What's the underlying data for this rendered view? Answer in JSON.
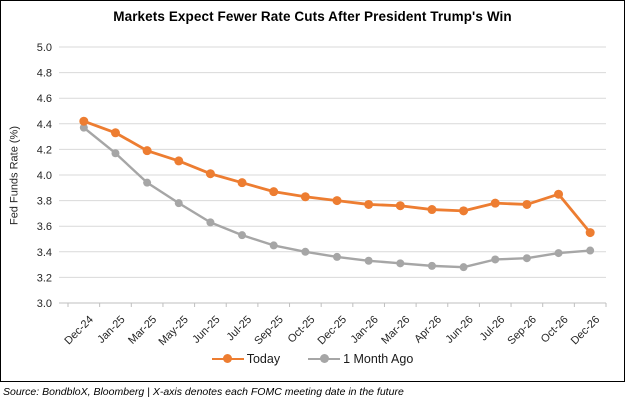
{
  "title": "Markets Expect Fewer Rate Cuts After President Trump's Win",
  "footer": "Source: BondbloX, Bloomberg | X-axis denotes each FOMC meeting date in the future",
  "colors": {
    "today_orange": "#ED7D31",
    "month_ago_gray": "#A6A6A6",
    "gridline": "#D9D9D9",
    "axis": "#BFBFBF",
    "tick_text": "#262626",
    "frame_border": "#000000"
  },
  "chart_data": {
    "type": "line",
    "title": "Markets Expect Fewer Rate Cuts After President Trump's Win",
    "xlabel": "",
    "ylabel": "Fed Funds Rate (%)",
    "ylim": [
      3.0,
      5.0
    ],
    "y_tick_step": 0.2,
    "y_tick_decimals": 1,
    "grid": true,
    "legend_position": "bottom",
    "x_note": "X-axis denotes each FOMC meeting date in the future",
    "categories": [
      "Dec-24",
      "Jan-25",
      "Mar-25",
      "May-25",
      "Jun-25",
      "Jul-25",
      "Sep-25",
      "Oct-25",
      "Dec-25",
      "Jan-26",
      "Mar-26",
      "Apr-26",
      "Jun-26",
      "Jul-26",
      "Sep-26",
      "Oct-26",
      "Dec-26"
    ],
    "series": [
      {
        "name": "Today",
        "color": "#ED7D31",
        "values": [
          4.42,
          4.33,
          4.19,
          4.11,
          4.01,
          3.94,
          3.87,
          3.83,
          3.8,
          3.77,
          3.76,
          3.73,
          3.72,
          3.78,
          3.77,
          3.85,
          3.55
        ]
      },
      {
        "name": "1 Month Ago",
        "color": "#A6A6A6",
        "values": [
          4.37,
          4.17,
          3.94,
          3.78,
          3.63,
          3.53,
          3.45,
          3.4,
          3.36,
          3.33,
          3.31,
          3.29,
          3.28,
          3.34,
          3.35,
          3.39,
          3.41
        ]
      }
    ]
  }
}
